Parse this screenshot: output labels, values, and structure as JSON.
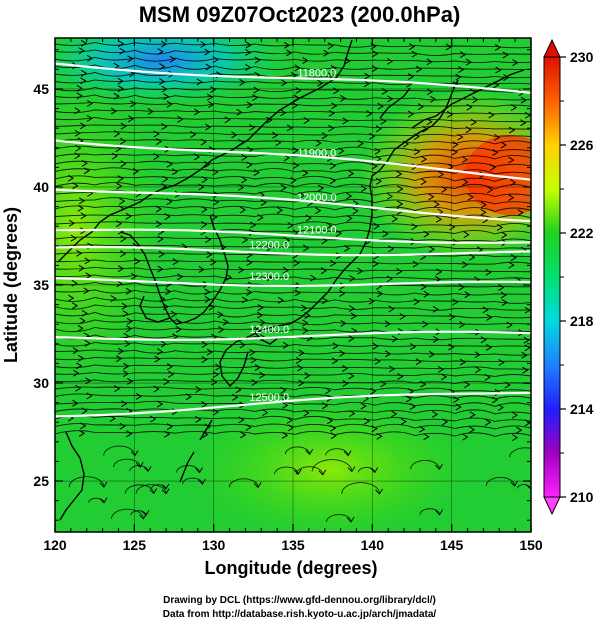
{
  "title": "MSM 09Z07Oct2023 (200.0hPa)",
  "axes": {
    "xlabel": "Longitude (degrees)",
    "ylabel": "Latitude  (degrees)",
    "xticks": [
      "120",
      "125",
      "130",
      "135",
      "140",
      "145",
      "150"
    ],
    "yticks": [
      "25",
      "30",
      "35",
      "40",
      "45"
    ],
    "xrange": [
      120,
      150
    ],
    "yrange": [
      22.4,
      47.6
    ]
  },
  "colorbar": {
    "range": [
      210,
      230
    ],
    "labels": [
      "230",
      "226",
      "222",
      "218",
      "214",
      "210"
    ],
    "colors": [
      "#ff20ff",
      "#a000c0",
      "#2020ff",
      "#2080ff",
      "#00d8e0",
      "#00e070",
      "#20d020",
      "#c8ff00",
      "#ffd000",
      "#ff6000",
      "#e01000"
    ]
  },
  "contours": [
    {
      "label": "11800.0",
      "lat_west": 46.3,
      "lat_east": 44.8
    },
    {
      "label": "11900.0",
      "lat_west": 42.5,
      "lat_east": 40.5
    },
    {
      "label": "12000.0",
      "lat_west": 40.0,
      "lat_east": 38.4
    },
    {
      "label": "12100.0",
      "lat_west": 37.8,
      "lat_east": 37.2
    },
    {
      "label": "12200.0",
      "lat_west": 36.8,
      "lat_east": 36.6
    },
    {
      "label": "12300.0",
      "lat_west": 35.2,
      "lat_east": 35.0
    },
    {
      "label": "12400.0",
      "lat_west": 32.3,
      "lat_east": 32.5
    },
    {
      "label": "12500.0",
      "lat_west": 28.4,
      "lat_east": 29.6
    }
  ],
  "credits": {
    "line1": "Drawing by DCL (https://www.gfd-dennou.org/library/dcl/)",
    "line2": "Data from http://database.rish.kyoto-u.ac.jp/arch/jmadata/"
  }
}
